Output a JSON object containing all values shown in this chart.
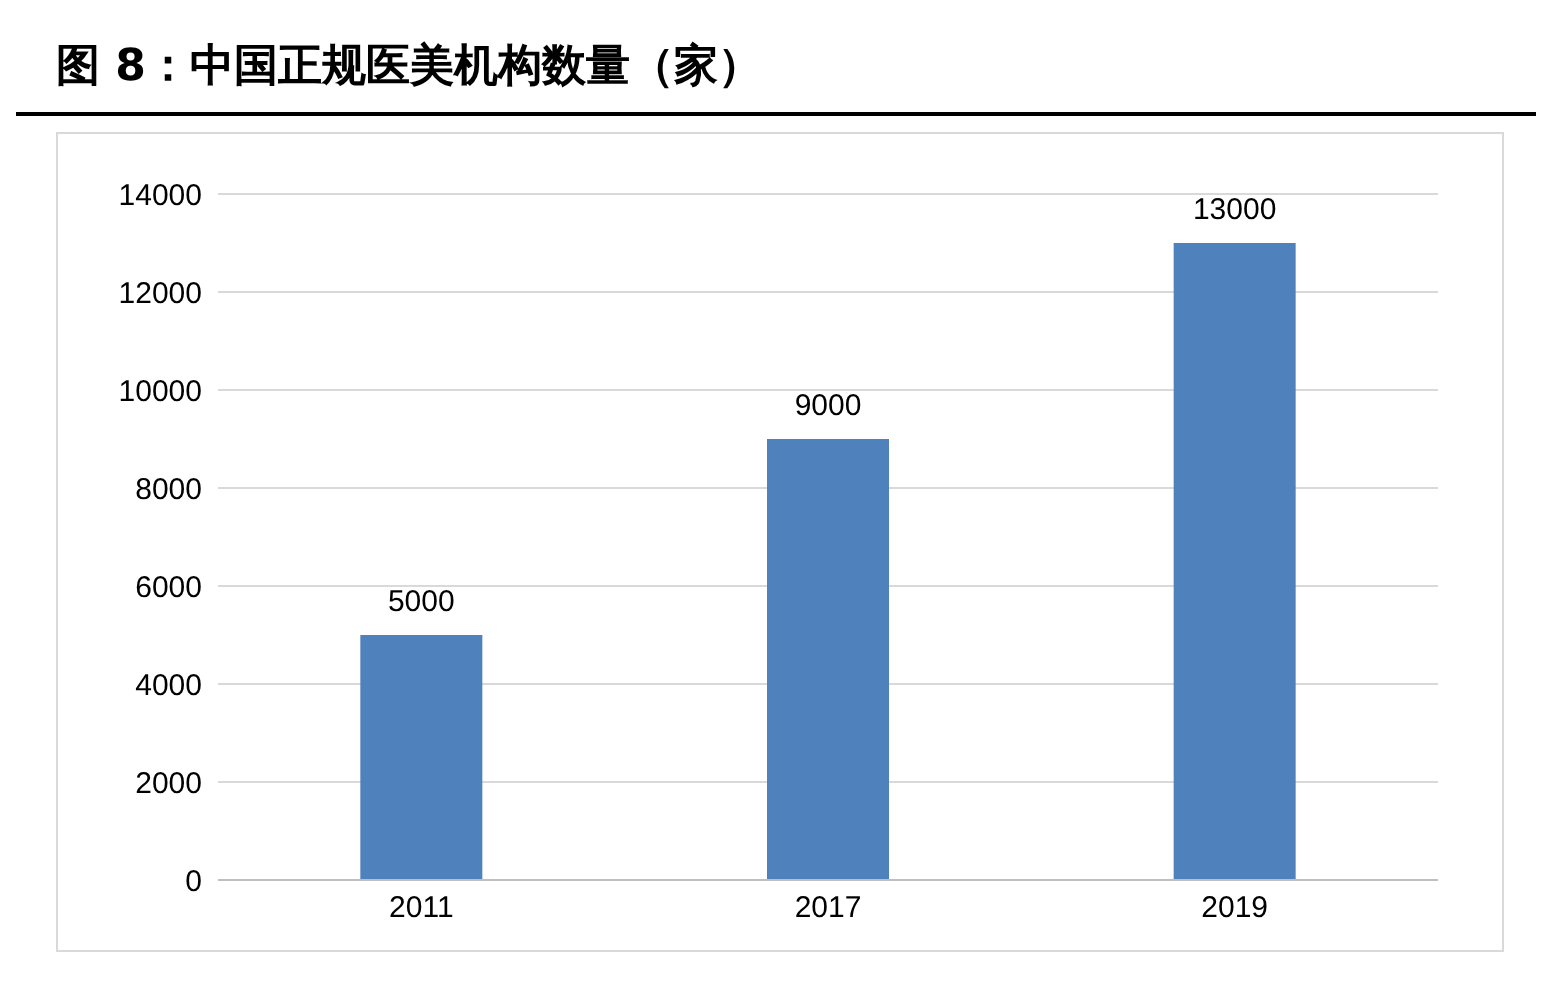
{
  "chart_data": {
    "type": "bar",
    "title": "图 8：中国正规医美机构数量（家）",
    "categories": [
      "2011",
      "2017",
      "2019"
    ],
    "values": [
      5000,
      9000,
      13000
    ],
    "color": "#4f81bd",
    "ylim": [
      0,
      14000
    ],
    "yticks": [
      0,
      2000,
      4000,
      6000,
      8000,
      10000,
      12000,
      14000
    ],
    "grid": "y",
    "data_labels": true,
    "legend": false
  }
}
